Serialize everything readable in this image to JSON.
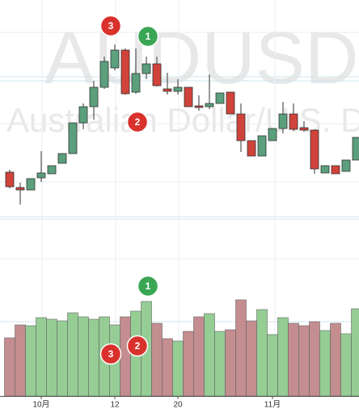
{
  "chart_data": {
    "type": "candlestick",
    "watermark": "AUDUSD",
    "subtitle": "Australian Dollar/U.S. Dollar",
    "categories": [
      null,
      null,
      null,
      "10月",
      null,
      null,
      null,
      null,
      null,
      null,
      "12",
      null,
      null,
      null,
      null,
      null,
      "20",
      null,
      null,
      null,
      null,
      null,
      null,
      null,
      null,
      "11月",
      null,
      null,
      null,
      null,
      null,
      null,
      null,
      null
    ],
    "open": [
      47,
      28,
      25,
      40,
      45,
      58,
      70,
      108,
      128,
      152,
      176,
      198,
      146,
      169,
      181,
      150,
      147,
      152,
      129,
      128,
      132,
      146,
      119,
      86,
      67,
      86,
      101,
      119,
      102,
      99,
      46,
      55,
      48,
      62
    ],
    "high": [
      50,
      34,
      39,
      73,
      55,
      70,
      108,
      132,
      160,
      190,
      205,
      200,
      200,
      190,
      190,
      170,
      162,
      152,
      142,
      168,
      145,
      146,
      132,
      86,
      92,
      101,
      134,
      132,
      110,
      100,
      55,
      55,
      62,
      90
    ],
    "low": [
      27,
      7,
      25,
      35,
      45,
      58,
      70,
      100,
      112,
      150,
      173,
      143,
      144,
      162,
      153,
      143,
      143,
      128,
      123,
      125,
      132,
      119,
      72,
      67,
      67,
      86,
      95,
      98,
      97,
      45,
      46,
      45,
      48,
      62
    ],
    "close": [
      29,
      25,
      39,
      46,
      55,
      70,
      108,
      128,
      152,
      184,
      198,
      144,
      169,
      181,
      154,
      147,
      152,
      128,
      127,
      132,
      145,
      119,
      86,
      67,
      92,
      101,
      119,
      100,
      99,
      51,
      55,
      45,
      62,
      90
    ],
    "volume": [
      72,
      88,
      87,
      97,
      95,
      93,
      103,
      98,
      95,
      98,
      88,
      98,
      105,
      117,
      90,
      71,
      68,
      80,
      98,
      102,
      80,
      82,
      119,
      93,
      107,
      76,
      97,
      90,
      87,
      92,
      81,
      90,
      77,
      108
    ],
    "ylim": [
      0,
      260
    ],
    "volume_ylim": [
      0,
      130
    ],
    "up_color": "#5b9f7c",
    "down_color": "#d0433b",
    "volume_up_color": "#95cd95",
    "volume_down_color": "#c48d90",
    "markers": [
      "3",
      "1",
      "2",
      "1",
      "3",
      "2"
    ],
    "marker_colors": [
      "#d9312b",
      "#3aa655",
      "#d9312b",
      "#3aa655",
      "#d9312b",
      "#d9312b"
    ]
  }
}
